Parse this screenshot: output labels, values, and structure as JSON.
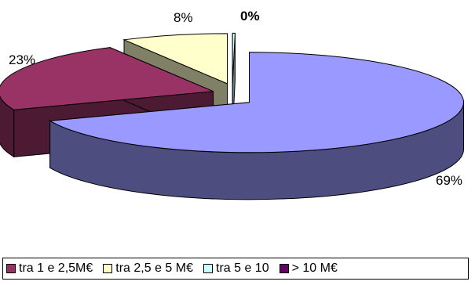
{
  "chart_data": {
    "type": "pie",
    "style": "3d-exploded",
    "title": "",
    "legend_position": "bottom",
    "slices": [
      {
        "label": "",
        "value": 69,
        "data_label": "69%",
        "color": "#9999ff",
        "side_color": "#4d4d80"
      },
      {
        "label": "tra 1 e 2,5M€",
        "value": 23,
        "data_label": "23%",
        "color": "#993366",
        "side_color": "#4d1a33"
      },
      {
        "label": "tra 2,5 e 5 M€",
        "value": 8,
        "data_label": "8%",
        "color": "#ffffcc",
        "side_color": "#808066"
      },
      {
        "label": "tra 5 e 10",
        "value": 0,
        "data_label": "0%",
        "color": "#ccffff",
        "side_color": "#668080"
      }
    ],
    "legend": [
      {
        "label": "tra 1 e 2,5M€",
        "color": "#993366"
      },
      {
        "label": "tra 2,5 e 5 M€",
        "color": "#ffffcc"
      },
      {
        "label": "tra 5 e 10",
        "color": "#ccffff"
      },
      {
        "label": "> 10 M€",
        "color": "#660066"
      }
    ]
  }
}
